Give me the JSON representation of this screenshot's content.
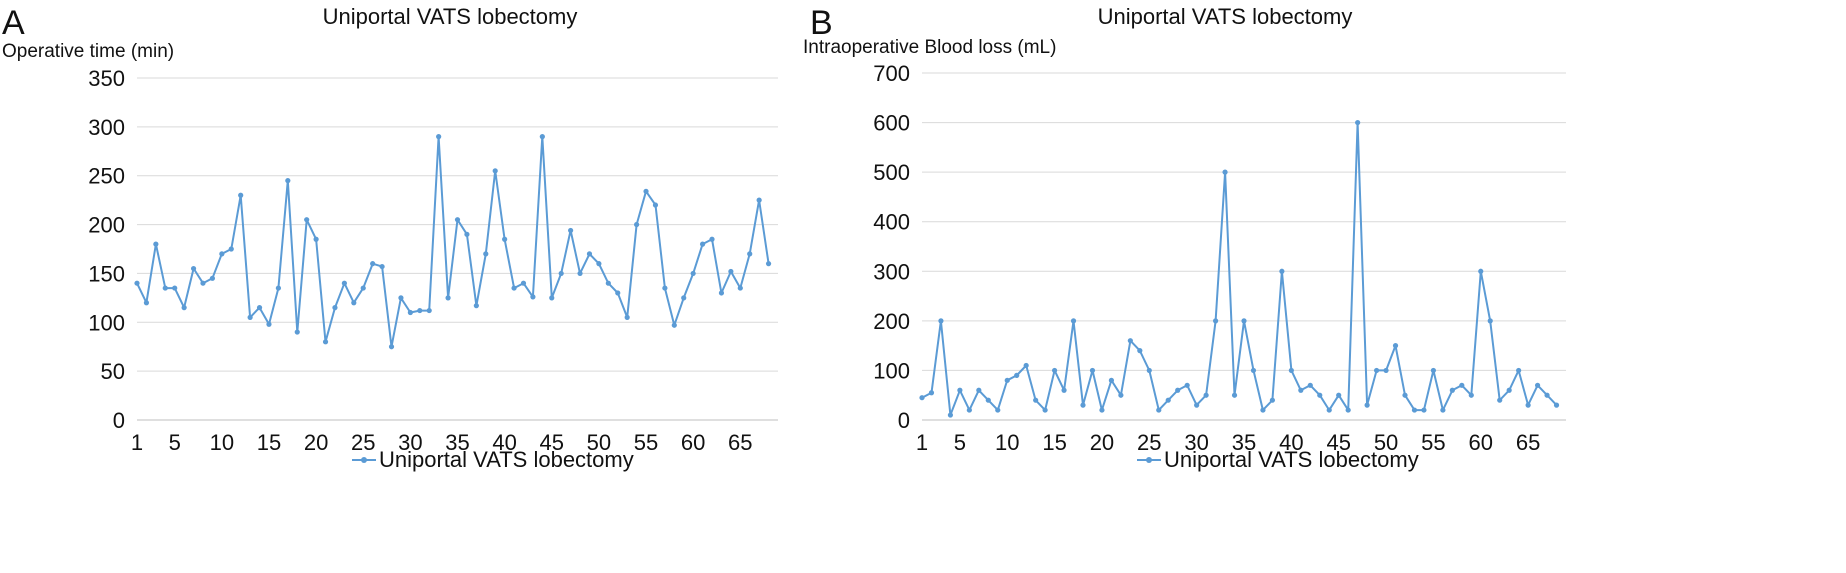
{
  "accent_color": "#5b9bd5",
  "chart_data": [
    {
      "panel_letter": "A",
      "type": "line",
      "title": "Uniportal VATS lobectomy",
      "ylabel": "Operative time (min)",
      "xlabel": "",
      "ylim": [
        0,
        350
      ],
      "yticks": [
        "0",
        "50",
        "100",
        "150",
        "200",
        "250",
        "300",
        "350"
      ],
      "xticks": [
        "1",
        "5",
        "10",
        "15",
        "20",
        "25",
        "30",
        "35",
        "40",
        "45",
        "50",
        "55",
        "60",
        "65"
      ],
      "grid": true,
      "legend_position": "bottom",
      "series": [
        {
          "name": "Uniportal VATS lobectomy",
          "x": [
            1,
            2,
            3,
            4,
            5,
            6,
            7,
            8,
            9,
            10,
            11,
            12,
            13,
            14,
            15,
            16,
            17,
            18,
            19,
            20,
            21,
            22,
            23,
            24,
            25,
            26,
            27,
            28,
            29,
            30,
            31,
            32,
            33,
            34,
            35,
            36,
            37,
            38,
            39,
            40,
            41,
            42,
            43,
            44,
            45,
            46,
            47,
            48,
            49,
            50,
            51,
            52,
            53,
            54,
            55,
            56,
            57,
            58,
            59,
            60,
            61,
            62,
            63,
            64,
            65,
            66,
            67,
            68
          ],
          "values": [
            140,
            120,
            180,
            135,
            135,
            115,
            155,
            140,
            145,
            170,
            175,
            230,
            105,
            115,
            98,
            135,
            245,
            90,
            205,
            185,
            80,
            115,
            140,
            120,
            135,
            160,
            157,
            75,
            125,
            110,
            112,
            112,
            290,
            125,
            205,
            190,
            117,
            170,
            255,
            185,
            135,
            140,
            126,
            290,
            125,
            150,
            194,
            150,
            170,
            160,
            140,
            130,
            105,
            200,
            234,
            220,
            135,
            97,
            125,
            150,
            180,
            185,
            130,
            152,
            135,
            170,
            225,
            160
          ]
        }
      ]
    },
    {
      "panel_letter": "B",
      "type": "line",
      "title": "Uniportal VATS lobectomy",
      "ylabel": "Intraoperative Blood loss (mL)",
      "xlabel": "",
      "ylim": [
        0,
        700
      ],
      "yticks": [
        "0",
        "100",
        "200",
        "300",
        "400",
        "500",
        "600",
        "700"
      ],
      "xticks": [
        "1",
        "5",
        "10",
        "15",
        "20",
        "25",
        "30",
        "35",
        "40",
        "45",
        "50",
        "55",
        "60",
        "65"
      ],
      "grid": true,
      "legend_position": "bottom",
      "series": [
        {
          "name": "Uniportal VATS lobectomy",
          "x": [
            1,
            2,
            3,
            4,
            5,
            6,
            7,
            8,
            9,
            10,
            11,
            12,
            13,
            14,
            15,
            16,
            17,
            18,
            19,
            20,
            21,
            22,
            23,
            24,
            25,
            26,
            27,
            28,
            29,
            30,
            31,
            32,
            33,
            34,
            35,
            36,
            37,
            38,
            39,
            40,
            41,
            42,
            43,
            44,
            45,
            46,
            47,
            48,
            49,
            50,
            51,
            52,
            53,
            54,
            55,
            56,
            57,
            58,
            59,
            60,
            61,
            62,
            63,
            64,
            65,
            66,
            67,
            68
          ],
          "values": [
            45,
            55,
            200,
            10,
            60,
            20,
            60,
            40,
            20,
            80,
            90,
            110,
            40,
            20,
            100,
            60,
            200,
            30,
            100,
            20,
            80,
            50,
            160,
            140,
            100,
            20,
            40,
            60,
            70,
            30,
            50,
            200,
            500,
            50,
            200,
            100,
            20,
            40,
            300,
            100,
            60,
            70,
            50,
            20,
            50,
            20,
            600,
            30,
            100,
            100,
            150,
            50,
            20,
            20,
            100,
            20,
            60,
            70,
            50,
            300,
            200,
            40,
            60,
            100,
            30,
            70,
            50,
            30
          ]
        }
      ]
    }
  ]
}
